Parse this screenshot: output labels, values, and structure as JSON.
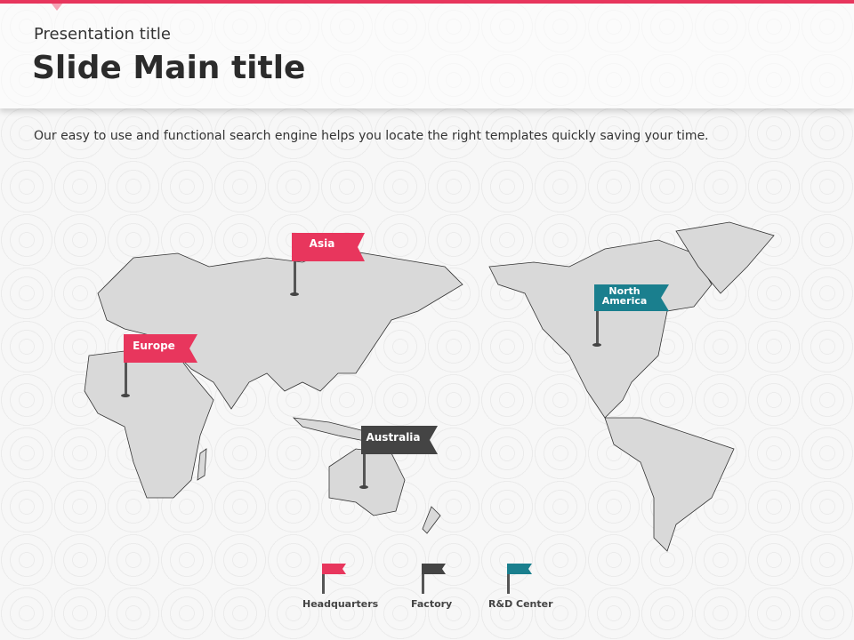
{
  "header": {
    "presentation_title": "Presentation title",
    "main_title": "Slide Main title"
  },
  "description": "Our easy to use and functional  search engine helps you locate the right templates quickly  saving your time.",
  "colors": {
    "accent": "#e8365d",
    "factory": "#444444",
    "rnd": "#1a7f8e",
    "land": "#d9d9d9"
  },
  "markers": [
    {
      "label": "Asia",
      "type": "Headquarters"
    },
    {
      "label": "Europe",
      "type": "Headquarters"
    },
    {
      "label": "Australia",
      "type": "Factory"
    },
    {
      "label": "North America",
      "type": "R&D Center"
    }
  ],
  "legend": [
    {
      "label": "Headquarters",
      "icon": "flag-icon"
    },
    {
      "label": "Factory",
      "icon": "flag-icon"
    },
    {
      "label": "R&D Center",
      "icon": "flag-icon"
    }
  ]
}
